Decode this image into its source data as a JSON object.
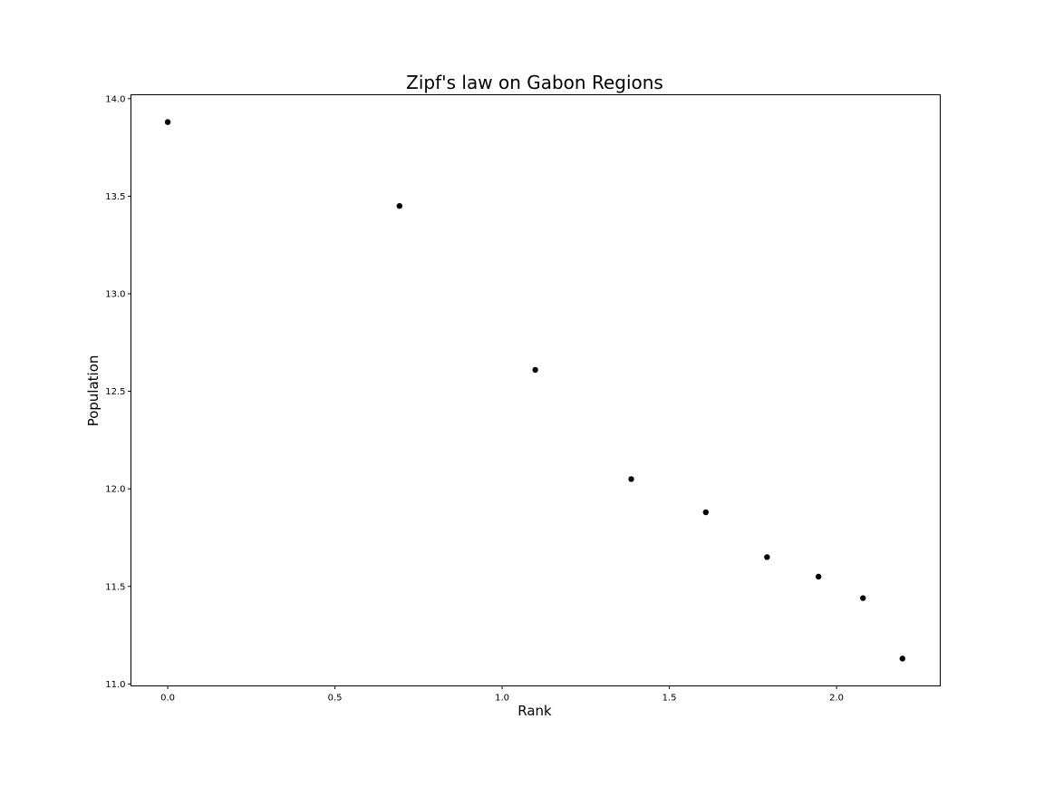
{
  "chart_data": {
    "type": "scatter",
    "title": "Zipf's law on Gabon Regions",
    "xlabel": "Rank",
    "ylabel": "Population",
    "xlim": [
      -0.11,
      2.31
    ],
    "ylim": [
      10.99,
      14.02
    ],
    "xticks": [
      "0.0",
      "0.5",
      "1.0",
      "1.5",
      "2.0"
    ],
    "yticks": [
      "11.0",
      "11.5",
      "12.0",
      "12.5",
      "13.0",
      "13.5",
      "14.0"
    ],
    "grid": false,
    "marker_color": "#000000",
    "points": [
      {
        "x": 0.0,
        "y": 13.88
      },
      {
        "x": 0.693,
        "y": 13.45
      },
      {
        "x": 1.099,
        "y": 12.61
      },
      {
        "x": 1.386,
        "y": 12.05
      },
      {
        "x": 1.609,
        "y": 11.88
      },
      {
        "x": 1.792,
        "y": 11.65
      },
      {
        "x": 1.946,
        "y": 11.55
      },
      {
        "x": 2.079,
        "y": 11.44
      },
      {
        "x": 2.197,
        "y": 11.13
      }
    ]
  }
}
